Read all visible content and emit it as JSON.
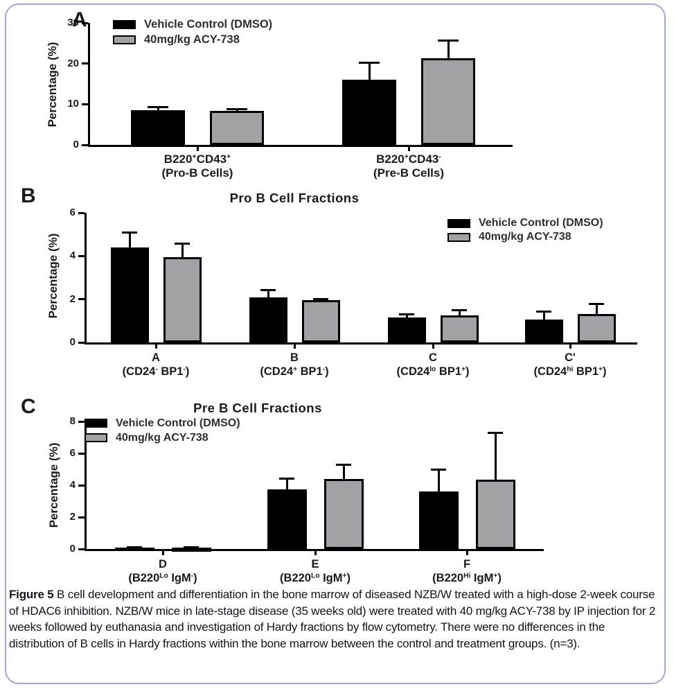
{
  "figure": {
    "caption_label": "Figure 5",
    "caption_text": " B cell development and differentiation in the bone marrow of diseased NZB/W treated with a high-dose 2-week course of HDAC6 inhibition. NZB/W mice in late-stage disease (35 weeks old) were treated with 40 mg/kg ACY-738 by IP injection for 2 weeks followed by euthanasia and investigation of Hardy fractions by flow cytometry. There were no differences in the distribution of B cells in Hardy fractions within the bone marrow between the control and treatment groups. (n=3)."
  },
  "colors": {
    "vehicle_control": "#000000",
    "acy738": "#a1a2a6",
    "axis": "#000000",
    "frame_border": "#a2a8ce",
    "text": "#1a1a1a",
    "legend_text": "#2e2e2e"
  },
  "chart_data": [
    {
      "type": "bar",
      "panel_letter": "A",
      "title": "",
      "ylabel": "Percentage (%)",
      "ylim": [
        0,
        30
      ],
      "yticks": [
        0,
        10,
        20,
        30
      ],
      "grid": false,
      "legend_position": "top-inside-left",
      "categories": [
        {
          "line1": "B220^{+}CD43^{+}",
          "line2": "(Pro-B Cells)"
        },
        {
          "line1": "B220^{+}CD43^{-}",
          "line2": "(Pre-B Cells)"
        }
      ],
      "series": [
        {
          "name": "Vehicle Control (DMSO)",
          "color_key": "vehicle_control",
          "values": [
            8.6,
            16.0
          ],
          "errors_upper": [
            9.3,
            20.3
          ]
        },
        {
          "name": "40mg/kg ACY-738",
          "color_key": "acy738",
          "values": [
            8.4,
            21.3
          ],
          "errors_upper": [
            8.8,
            25.7
          ]
        }
      ]
    },
    {
      "type": "bar",
      "panel_letter": "B",
      "title": "Pro B Cell Fractions",
      "ylabel": "Percentage (%)",
      "ylim": [
        0,
        6
      ],
      "yticks": [
        0,
        2,
        4,
        6
      ],
      "grid": false,
      "legend_position": "top-right",
      "categories": [
        {
          "line1": "A",
          "line2": "(CD24^{-} BP1^{-})"
        },
        {
          "line1": "B",
          "line2": "(CD24^{+} BP1^{-})"
        },
        {
          "line1": "C",
          "line2": "(CD24^{lo} BP1^{+})"
        },
        {
          "line1": "C'",
          "line2": "(CD24^{hi} BP1^{+})"
        }
      ],
      "series": [
        {
          "name": "Vehicle Control (DMSO)",
          "color_key": "vehicle_control",
          "values": [
            4.4,
            2.07,
            1.15,
            1.07
          ],
          "errors_upper": [
            5.1,
            2.45,
            1.3,
            1.43
          ]
        },
        {
          "name": "40mg/kg ACY-738",
          "color_key": "acy738",
          "values": [
            3.95,
            1.95,
            1.25,
            1.3
          ],
          "errors_upper": [
            4.6,
            2.02,
            1.5,
            1.8
          ]
        }
      ]
    },
    {
      "type": "bar",
      "panel_letter": "C",
      "title": "Pre B Cell Fractions",
      "ylabel": "Percentage (%)",
      "ylim": [
        0,
        8
      ],
      "yticks": [
        0,
        2,
        4,
        6,
        8
      ],
      "grid": false,
      "legend_position": "top-inside-left",
      "categories": [
        {
          "line1": "D",
          "line2": "(B220^{Lo} IgM^{-})"
        },
        {
          "line1": "E",
          "line2": "(B220^{Lo} IgM^{+})"
        },
        {
          "line1": "F",
          "line2": "(B220^{Hi} IgM^{+})"
        }
      ],
      "series": [
        {
          "name": "Vehicle Control (DMSO)",
          "color_key": "vehicle_control",
          "values": [
            0.08,
            3.75,
            3.6
          ],
          "errors_upper": [
            0.12,
            4.45,
            5.0
          ]
        },
        {
          "name": "40mg/kg ACY-738",
          "color_key": "acy738",
          "values": [
            0.08,
            4.4,
            4.35
          ],
          "errors_upper": [
            0.12,
            5.3,
            7.3
          ]
        }
      ]
    }
  ]
}
